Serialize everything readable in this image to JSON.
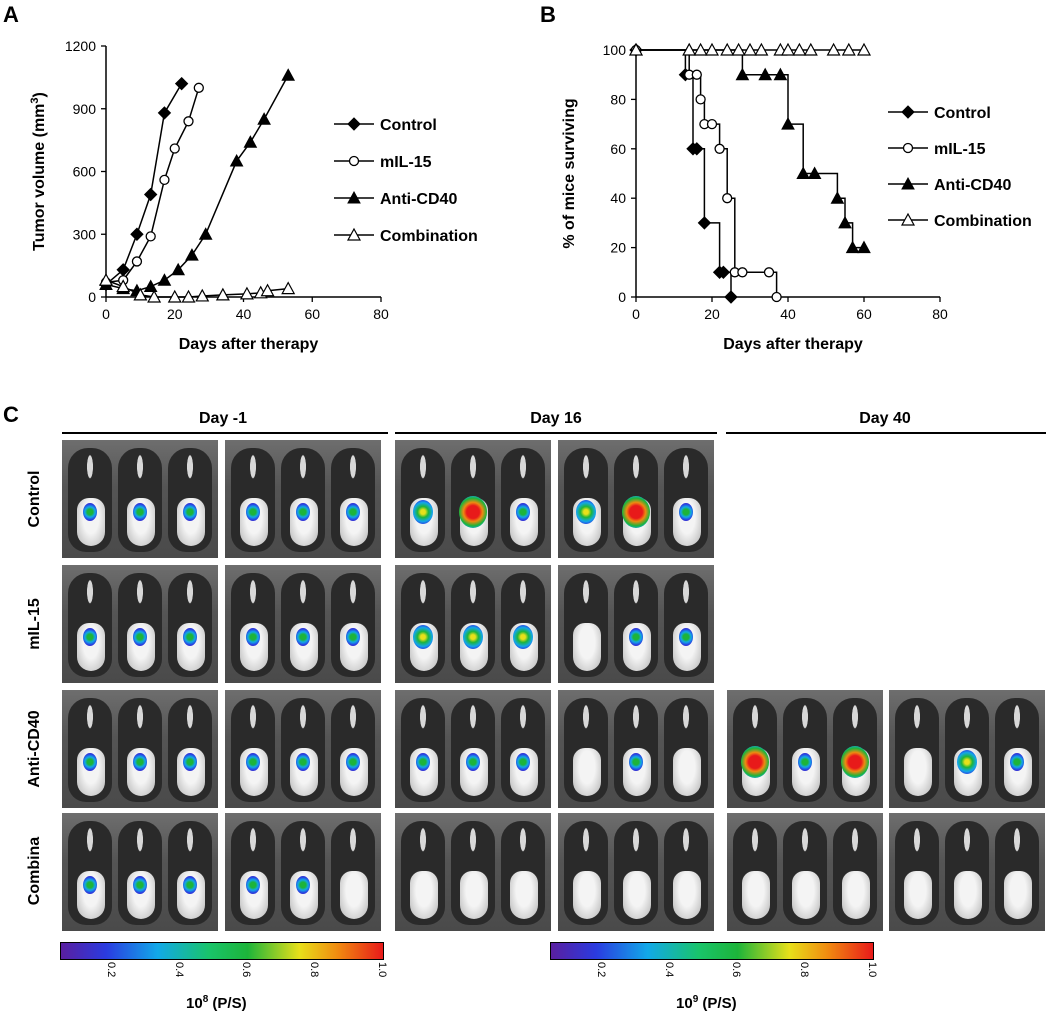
{
  "panels": {
    "a": "A",
    "b": "B",
    "c": "C"
  },
  "chart_data": [
    {
      "type": "line",
      "title": "",
      "xlabel": "Days after therapy",
      "ylabel": "Tumor volume (mm",
      "ylabel_sup": "3",
      "ylabel_close": ")",
      "xlim": [
        0,
        80
      ],
      "ylim": [
        0,
        1200
      ],
      "xticks": [
        "0",
        "20",
        "40",
        "60",
        "80"
      ],
      "yticks": [
        "0",
        "300",
        "600",
        "900",
        "1200"
      ],
      "legend_position": "right",
      "series": [
        {
          "name": "Control",
          "marker": "diamond",
          "x": [
            0,
            5,
            9,
            13,
            17,
            22
          ],
          "y": [
            60,
            130,
            300,
            490,
            880,
            1020
          ]
        },
        {
          "name": "mIL-15",
          "marker": "circle",
          "x": [
            0,
            5,
            9,
            13,
            17,
            20,
            24,
            27
          ],
          "y": [
            70,
            80,
            170,
            290,
            560,
            710,
            840,
            1000
          ]
        },
        {
          "name": "Anti-CD40",
          "marker": "triangle-filled",
          "x": [
            0,
            5,
            9,
            13,
            17,
            21,
            25,
            29,
            38,
            42,
            46,
            53
          ],
          "y": [
            60,
            40,
            30,
            50,
            80,
            130,
            200,
            300,
            650,
            740,
            850,
            1060
          ]
        },
        {
          "name": "Combination",
          "marker": "triangle-open",
          "x": [
            0,
            5,
            10,
            14,
            20,
            24,
            28,
            34,
            41,
            45,
            47,
            53
          ],
          "y": [
            80,
            50,
            10,
            0,
            0,
            0,
            5,
            10,
            15,
            20,
            30,
            40
          ]
        }
      ]
    },
    {
      "type": "line",
      "step": true,
      "title": "",
      "xlabel": "Days after therapy",
      "ylabel": "% of mice surviving",
      "xlim": [
        0,
        80
      ],
      "ylim": [
        0,
        100
      ],
      "xticks": [
        "0",
        "20",
        "40",
        "60",
        "80"
      ],
      "yticks": [
        "0",
        "20",
        "40",
        "60",
        "80",
        "100"
      ],
      "legend_position": "right",
      "series": [
        {
          "name": "Control",
          "marker": "diamond",
          "x": [
            0,
            13,
            15,
            16,
            18,
            22,
            23,
            25
          ],
          "y": [
            100,
            90,
            60,
            60,
            30,
            10,
            10,
            0
          ]
        },
        {
          "name": "mIL-15",
          "marker": "circle",
          "x": [
            0,
            14,
            16,
            17,
            18,
            20,
            22,
            24,
            26,
            28,
            35,
            37
          ],
          "y": [
            100,
            90,
            90,
            80,
            70,
            70,
            60,
            40,
            10,
            10,
            10,
            0
          ]
        },
        {
          "name": "Anti-CD40",
          "marker": "triangle-filled",
          "x": [
            0,
            14,
            28,
            34,
            38,
            40,
            44,
            47,
            53,
            55,
            57,
            60
          ],
          "y": [
            100,
            100,
            90,
            90,
            90,
            70,
            50,
            50,
            40,
            30,
            20,
            20
          ]
        },
        {
          "name": "Combination",
          "marker": "triangle-open",
          "x": [
            0,
            14,
            17,
            20,
            24,
            27,
            30,
            33,
            38,
            40,
            43,
            46,
            52,
            56,
            60
          ],
          "y": [
            100,
            100,
            100,
            100,
            100,
            100,
            100,
            100,
            100,
            100,
            100,
            100,
            100,
            100,
            100
          ]
        }
      ]
    }
  ],
  "imaging": {
    "headers": [
      "Day -1",
      "Day 16",
      "Day 40"
    ],
    "rows": [
      "Control",
      "mIL-15",
      "Anti-CD40",
      "Combina"
    ],
    "colorbars": [
      {
        "ticks": [
          "0.2",
          "0.4",
          "0.6",
          "0.8",
          "1.0"
        ],
        "label_base": "10",
        "label_exp": "8",
        "label_unit": " (P/S)"
      },
      {
        "ticks": [
          "0.2",
          "0.4",
          "0.6",
          "0.8",
          "1.0"
        ],
        "label_base": "10",
        "label_exp": "9",
        "label_unit": " (P/S)"
      }
    ]
  },
  "colors": {
    "line": "#000000",
    "marker_fill": "#000000",
    "marker_open": "#ffffff"
  }
}
